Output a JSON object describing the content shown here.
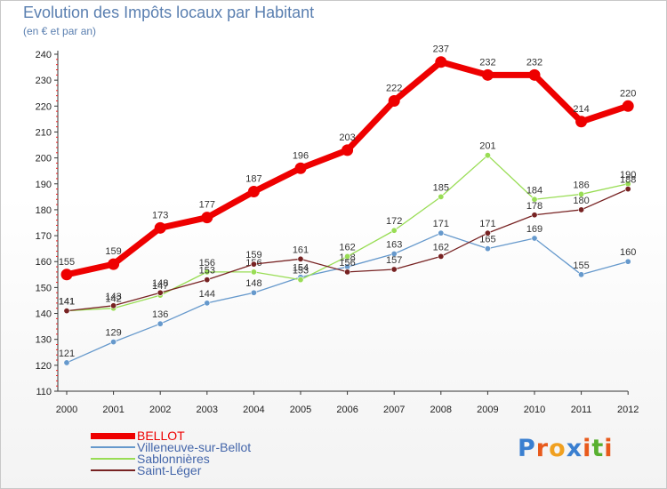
{
  "header": {
    "title": "Evolution des Impôts locaux par Habitant",
    "subtitle": "(en € et par an)"
  },
  "logo": {
    "text": "Proxiti",
    "letters": [
      "P",
      "r",
      "o",
      "x",
      "i",
      "t",
      "i"
    ]
  },
  "chart_data": {
    "type": "line",
    "title": "Evolution des Impôts locaux par Habitant",
    "subtitle": "(en € et par an)",
    "x": [
      "2000",
      "2001",
      "2002",
      "2003",
      "2004",
      "2005",
      "2006",
      "2007",
      "2008",
      "2009",
      "2010",
      "2011",
      "2012"
    ],
    "ylim": [
      110,
      240
    ],
    "yticks": [
      110,
      120,
      130,
      140,
      150,
      160,
      170,
      180,
      190,
      200,
      210,
      220,
      230,
      240
    ],
    "grid": false,
    "legend_position": "bottom-left",
    "series": [
      {
        "name": "BELLOT",
        "color": "#ee0000",
        "values": [
          155,
          159,
          173,
          177,
          187,
          196,
          203,
          222,
          237,
          232,
          232,
          214,
          220
        ]
      },
      {
        "name": "Villeneuve-sur-Bellot",
        "color": "#6699cc",
        "values": [
          121,
          129,
          136,
          144,
          148,
          154,
          158,
          163,
          171,
          165,
          169,
          155,
          160
        ]
      },
      {
        "name": "Sablonnières",
        "color": "#99dd55",
        "values": [
          141,
          142,
          147,
          156,
          156,
          153,
          162,
          172,
          185,
          201,
          184,
          186,
          190
        ]
      },
      {
        "name": "Saint-Léger",
        "color": "#772222",
        "values": [
          141,
          143,
          148,
          153,
          159,
          161,
          156,
          157,
          162,
          171,
          178,
          180,
          188
        ]
      }
    ]
  }
}
